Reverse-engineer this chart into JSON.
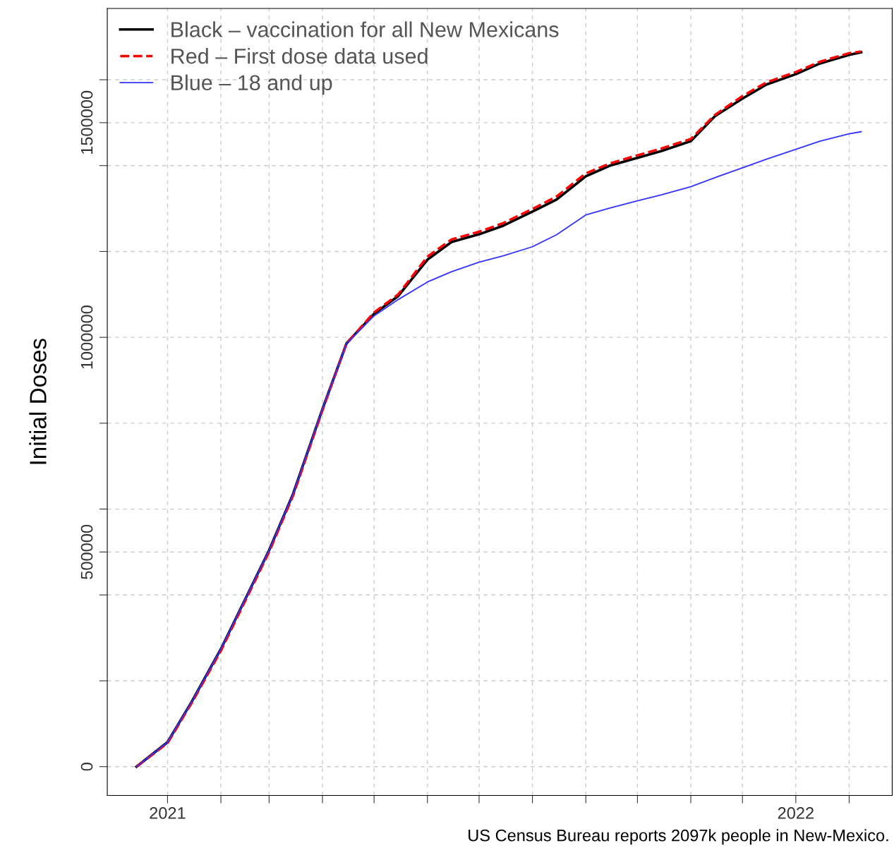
{
  "chart_data": {
    "type": "line",
    "ylabel": "Initial Doses",
    "xlim": [
      "2020-11-27",
      "2022-02-26"
    ],
    "ylim": [
      -67000,
      1766000
    ],
    "xticks": [
      "2021",
      {
        "value": "2021-02",
        "label": null
      },
      {
        "value": "2021-03",
        "label": null
      },
      {
        "value": "2021-04",
        "label": null
      },
      {
        "value": "2021-05",
        "label": null
      },
      {
        "value": "2021-06",
        "label": null
      },
      {
        "value": "2021-07",
        "label": null
      },
      {
        "value": "2021-08",
        "label": null
      },
      {
        "value": "2021-09",
        "label": null
      },
      {
        "value": "2021-10",
        "label": null
      },
      {
        "value": "2021-11",
        "label": null
      },
      {
        "value": "2021-12",
        "label": null
      },
      "2022",
      {
        "value": "2022-02",
        "label": null
      }
    ],
    "yticks": [
      0,
      {
        "value": 200000,
        "label": null
      },
      {
        "value": 400000,
        "label": null
      },
      500000,
      {
        "value": 600000,
        "label": null
      },
      {
        "value": 800000,
        "label": null
      },
      1000000,
      {
        "value": 1200000,
        "label": null
      },
      {
        "value": 1400000,
        "label": null
      },
      1500000,
      {
        "value": 1600000,
        "label": null
      }
    ],
    "grid": true,
    "legend": "top left",
    "marker": "none",
    "x": [
      "2020-12-14",
      "2021-01-01",
      "2021-01-15",
      "2021-02-01",
      "2021-02-15",
      "2021-03-01",
      "2021-03-15",
      "2021-04-01",
      "2021-04-15",
      "2021-05-01",
      "2021-05-15",
      "2021-06-01",
      "2021-06-15",
      "2021-07-01",
      "2021-07-15",
      "2021-08-01",
      "2021-08-15",
      "2021-09-01",
      "2021-09-15",
      "2021-10-01",
      "2021-10-15",
      "2021-11-01",
      "2021-11-15",
      "2021-12-01",
      "2021-12-15",
      "2022-01-01",
      "2022-01-15",
      "2022-02-01",
      "2022-02-08"
    ],
    "series": [
      {
        "name": "Black – vaccination for all New Mexicans",
        "color": "#000000",
        "line_style": "solid",
        "values": [
          0,
          57000,
          151000,
          274000,
          389000,
          504000,
          636000,
          833000,
          986000,
          1055000,
          1096000,
          1181000,
          1222000,
          1240000,
          1260000,
          1293000,
          1321000,
          1375000,
          1400000,
          1418000,
          1434000,
          1457000,
          1515000,
          1556000,
          1589000,
          1613000,
          1638000,
          1658000,
          1664000
        ]
      },
      {
        "name": "Red – First dose data used",
        "color": "#ff0000",
        "line_style": "dashed",
        "values": [
          0,
          55000,
          148000,
          270000,
          385000,
          500000,
          632000,
          830000,
          986000,
          1058000,
          1100000,
          1188000,
          1228000,
          1246000,
          1266000,
          1299000,
          1328000,
          1382000,
          1405000,
          1424000,
          1440000,
          1462000,
          1518000,
          1562000,
          1594000,
          1618000,
          1642000,
          1662000,
          1666000
        ]
      },
      {
        "name": "Blue – 18 and up",
        "color": "#3333ff",
        "line_style": "solid",
        "values": [
          0,
          57000,
          151000,
          274000,
          389000,
          504000,
          636000,
          833000,
          986000,
          1050000,
          1088000,
          1129000,
          1153000,
          1175000,
          1190000,
          1211000,
          1239000,
          1285000,
          1301000,
          1318000,
          1332000,
          1351000,
          1372000,
          1395000,
          1415000,
          1438000,
          1457000,
          1474000,
          1479000
        ]
      }
    ],
    "annotations": [
      "US Census Bureau reports 2097k people in New-Mexico."
    ]
  }
}
